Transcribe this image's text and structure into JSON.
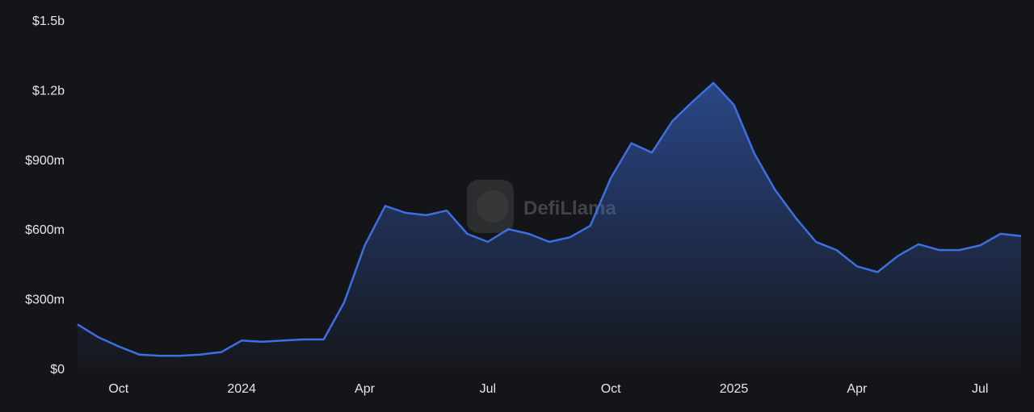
{
  "chart_data": {
    "type": "area",
    "watermark": "DefiLlama",
    "color": "#3d6fe0",
    "grid": false,
    "categories": [
      null,
      null,
      "Oct",
      null,
      null,
      null,
      null,
      null,
      "2024",
      null,
      null,
      null,
      null,
      null,
      "Apr",
      null,
      null,
      null,
      null,
      null,
      "Jul",
      null,
      null,
      null,
      null,
      null,
      "Oct",
      null,
      null,
      null,
      null,
      null,
      "2025",
      null,
      null,
      null,
      null,
      null,
      "Apr",
      null,
      null,
      null,
      null,
      null,
      "Jul",
      null,
      null
    ],
    "values": [
      190000000,
      135000000,
      95000000,
      60000000,
      55000000,
      55000000,
      60000000,
      70000000,
      120000000,
      115000000,
      120000000,
      125000000,
      125000000,
      285000000,
      530000000,
      700000000,
      670000000,
      660000000,
      680000000,
      580000000,
      545000000,
      600000000,
      580000000,
      545000000,
      565000000,
      615000000,
      820000000,
      970000000,
      930000000,
      1065000000,
      1150000000,
      1230000000,
      1135000000,
      925000000,
      770000000,
      650000000,
      545000000,
      510000000,
      440000000,
      415000000,
      485000000,
      535000000,
      510000000,
      510000000,
      530000000,
      580000000,
      570000000
    ],
    "ylim": [
      0,
      1500000000
    ],
    "yticks": [
      {
        "value": 0,
        "label": "$0"
      },
      {
        "value": 300000000,
        "label": "$300m"
      },
      {
        "value": 600000000,
        "label": "$600m"
      },
      {
        "value": 900000000,
        "label": "$900m"
      },
      {
        "value": 1200000000,
        "label": "$1.2b"
      },
      {
        "value": 1500000000,
        "label": "$1.5b"
      }
    ]
  }
}
